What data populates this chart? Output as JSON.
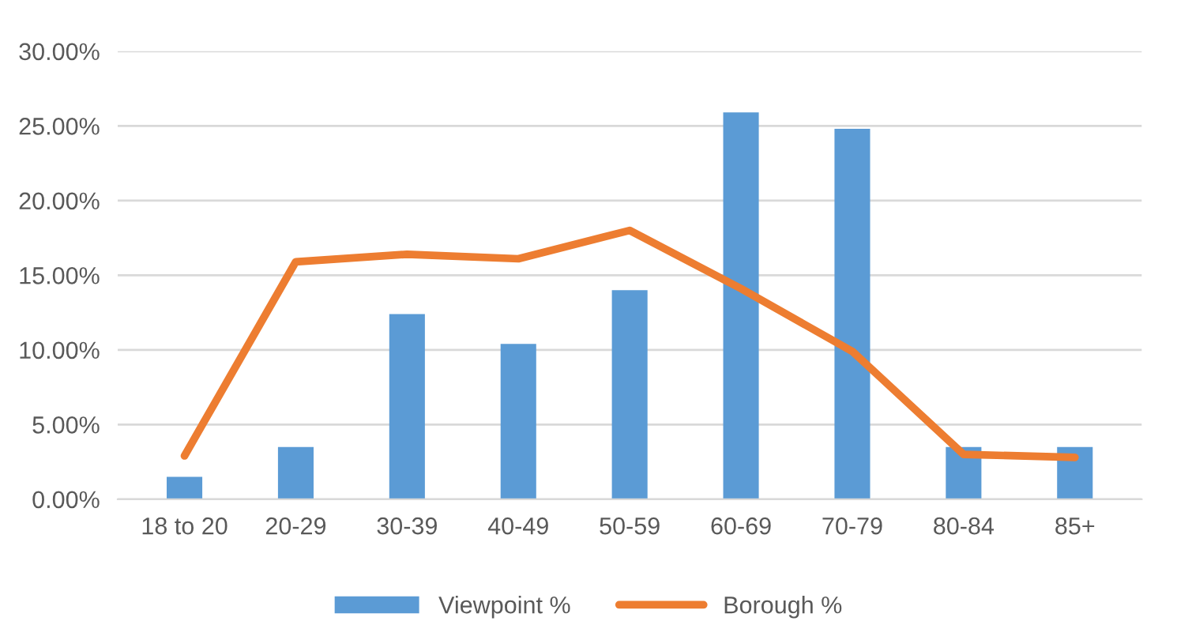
{
  "chart_data": {
    "type": "bar",
    "categories": [
      "18 to 20",
      "20-29",
      "30-39",
      "40-49",
      "50-59",
      "60-69",
      "70-79",
      "80-84",
      "85+"
    ],
    "series": [
      {
        "name": "Viewpoint %",
        "color": "#5b9bd5",
        "values": [
          1.5,
          3.5,
          12.4,
          10.4,
          14.0,
          25.9,
          24.8,
          3.5,
          3.5
        ]
      },
      {
        "name": "Borough %",
        "type": "line",
        "color": "#ed7d31",
        "values": [
          2.9,
          15.9,
          16.4,
          16.1,
          18.0,
          14.1,
          9.9,
          3.0,
          2.8
        ]
      }
    ],
    "ylim": [
      0,
      30
    ],
    "yticks": [
      {
        "value": 0,
        "label": "0.00%"
      },
      {
        "value": 5,
        "label": "5.00%"
      },
      {
        "value": 10,
        "label": "10.00%"
      },
      {
        "value": 15,
        "label": "15.00%"
      },
      {
        "value": 20,
        "label": "20.00%"
      },
      {
        "value": 25,
        "label": "25.00%"
      },
      {
        "value": 30,
        "label": "30.00%"
      }
    ],
    "grid": "y",
    "legend": "bottom",
    "marker": "none",
    "line_style": "solid"
  }
}
